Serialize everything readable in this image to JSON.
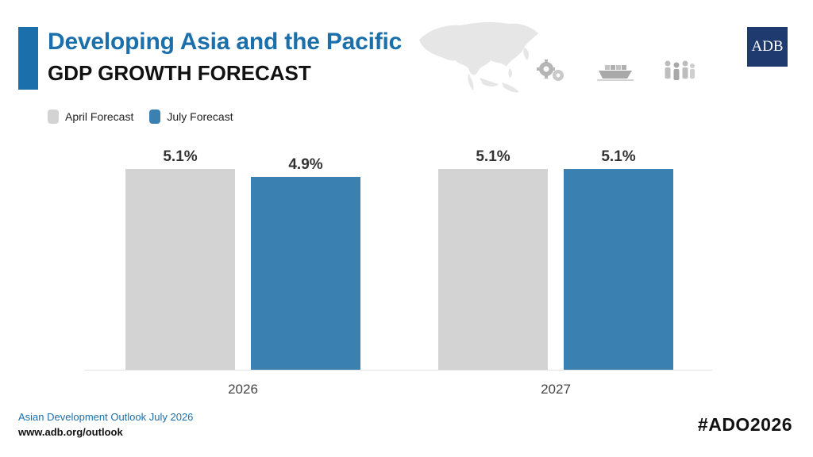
{
  "header": {
    "title": "Developing Asia and the Pacific",
    "subtitle": "GDP GROWTH FORECAST",
    "logo_text": "ADB"
  },
  "legend": [
    {
      "label": "April Forecast",
      "color": "#d3d3d3"
    },
    {
      "label": "July Forecast",
      "color": "#3a80b1"
    }
  ],
  "icons": [
    "asia-map-icon",
    "gears-money-icon",
    "cargo-ship-icon",
    "people-group-icon"
  ],
  "chart_data": {
    "type": "bar",
    "categories": [
      "2026",
      "2027"
    ],
    "series": [
      {
        "name": "April Forecast",
        "values": [
          5.1,
          5.1
        ],
        "labels": [
          "5.1%",
          "5.1%"
        ],
        "color": "#d3d3d3"
      },
      {
        "name": "July Forecast",
        "values": [
          4.9,
          5.1
        ],
        "labels": [
          "4.9%",
          "5.1%"
        ],
        "color": "#3a80b1"
      }
    ],
    "title": "Developing Asia and the Pacific",
    "subtitle": "GDP GROWTH FORECAST",
    "xlabel": "",
    "ylabel": "",
    "grid": false,
    "legend_position": "top-left"
  },
  "footer": {
    "title": "Asian Development Outlook July 2026",
    "url": "www.adb.org/outlook",
    "hashtag": "#ADO2026"
  }
}
